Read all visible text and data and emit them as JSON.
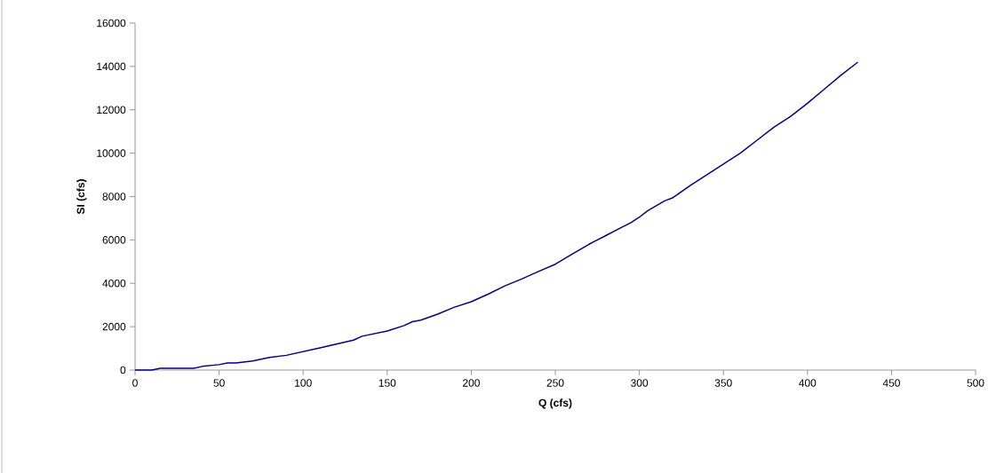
{
  "chart_data": {
    "type": "line",
    "xlabel": "Q (cfs)",
    "ylabel": "SI (cfs)",
    "xlim": [
      0,
      500
    ],
    "xticks": [
      0,
      50,
      100,
      150,
      200,
      250,
      300,
      350,
      400,
      450,
      500
    ],
    "ylim": [
      0,
      16000
    ],
    "yticks": [
      0,
      2000,
      4000,
      6000,
      8000,
      10000,
      12000,
      14000,
      16000
    ],
    "grid": false,
    "legend": false,
    "marker": "none",
    "line_style": "solid",
    "x": [
      0,
      10,
      15,
      35,
      40,
      50,
      55,
      60,
      70,
      80,
      90,
      100,
      110,
      120,
      130,
      135,
      150,
      160,
      165,
      170,
      180,
      190,
      200,
      210,
      220,
      230,
      240,
      250,
      260,
      270,
      275,
      280,
      290,
      295,
      300,
      305,
      315,
      320,
      330,
      340,
      350,
      360,
      370,
      380,
      390,
      400,
      410,
      420,
      430
    ],
    "series": [
      {
        "color": "#000080",
        "values": [
          0,
          0,
          80,
          80,
          170,
          250,
          330,
          330,
          420,
          580,
          680,
          850,
          1020,
          1200,
          1380,
          1560,
          1800,
          2050,
          2230,
          2300,
          2580,
          2900,
          3150,
          3500,
          3880,
          4200,
          4550,
          4880,
          5350,
          5800,
          6000,
          6200,
          6600,
          6800,
          7050,
          7350,
          7800,
          7950,
          8500,
          9000,
          9500,
          10000,
          10600,
          11200,
          11700,
          12300,
          12950,
          13600,
          14200
        ]
      }
    ]
  }
}
